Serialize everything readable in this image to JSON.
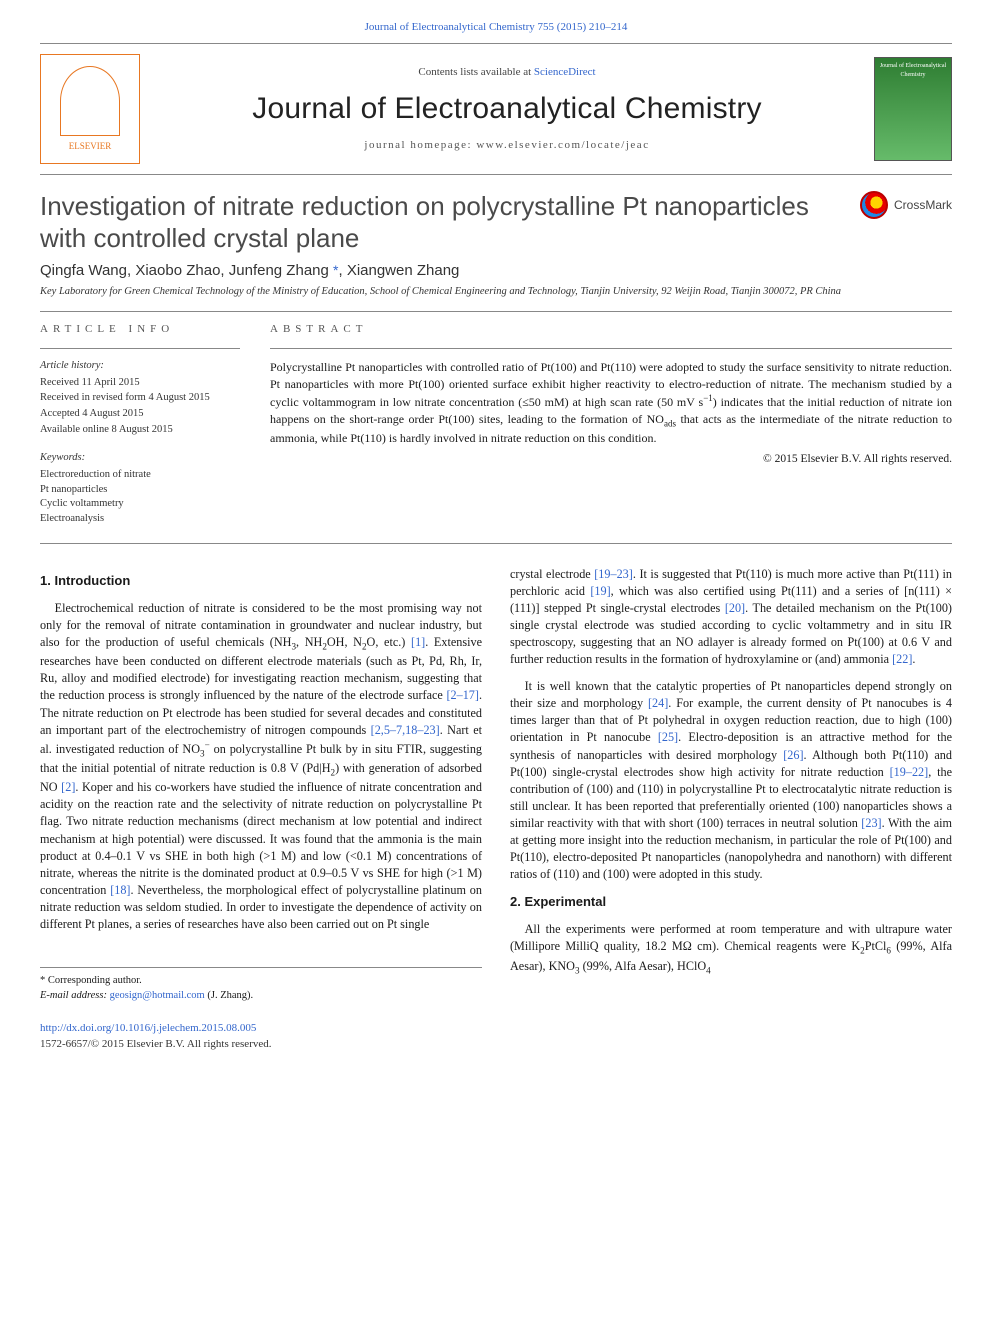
{
  "topbar": "Journal of Electroanalytical Chemistry 755 (2015) 210–214",
  "header": {
    "contents_prefix": "Contents lists available at ",
    "contents_link": "ScienceDirect",
    "journal_name": "Journal of Electroanalytical Chemistry",
    "homepage_prefix": "journal homepage: ",
    "homepage_url": "www.elsevier.com/locate/jeac",
    "elsevier_label": "ELSEVIER",
    "cover_text": "Journal of Electroanalytical Chemistry"
  },
  "title": "Investigation of nitrate reduction on polycrystalline Pt nanoparticles with controlled crystal plane",
  "crossmark_label": "CrossMark",
  "authors": [
    "Qingfa Wang",
    "Xiaobo Zhao",
    "Junfeng Zhang",
    "Xiangwen Zhang"
  ],
  "author_line": "Qingfa Wang, Xiaobo Zhao, Junfeng Zhang *, Xiangwen Zhang",
  "affiliation": "Key Laboratory for Green Chemical Technology of the Ministry of Education, School of Chemical Engineering and Technology, Tianjin University, 92 Weijin Road, Tianjin 300072, PR China",
  "article_info": {
    "label": "article info",
    "history_label": "Article history:",
    "history": [
      "Received 11 April 2015",
      "Received in revised form 4 August 2015",
      "Accepted 4 August 2015",
      "Available online 8 August 2015"
    ],
    "keywords_label": "Keywords:",
    "keywords": [
      "Electroreduction of nitrate",
      "Pt nanoparticles",
      "Cyclic voltammetry",
      "Electroanalysis"
    ]
  },
  "abstract": {
    "label": "abstract",
    "text": "Polycrystalline Pt nanoparticles with controlled ratio of Pt(100) and Pt(110) were adopted to study the surface sensitivity to nitrate reduction. Pt nanoparticles with more Pt(100) oriented surface exhibit higher reactivity to electro-reduction of nitrate. The mechanism studied by a cyclic voltammogram in low nitrate concentration (≤50 mM) at high scan rate (50 mV s⁻¹) indicates that the initial reduction of nitrate ion happens on the short-range order Pt(100) sites, leading to the formation of NOads that acts as the intermediate of the nitrate reduction to ammonia, while Pt(110) is hardly involved in nitrate reduction on this condition.",
    "copyright": "© 2015 Elsevier B.V. All rights reserved."
  },
  "body": {
    "intro_heading": "1. Introduction",
    "intro_p1": "Electrochemical reduction of nitrate is considered to be the most promising way not only for the removal of nitrate contamination in groundwater and nuclear industry, but also for the production of useful chemicals (NH₃, NH₂OH, N₂O, etc.) [1]. Extensive researches have been conducted on different electrode materials (such as Pt, Pd, Rh, Ir, Ru, alloy and modified electrode) for investigating reaction mechanism, suggesting that the reduction process is strongly influenced by the nature of the electrode surface [2–17]. The nitrate reduction on Pt electrode has been studied for several decades and constituted an important part of the electrochemistry of nitrogen compounds [2,5–7,18–23]. Nart et al. investigated reduction of NO₃⁻ on polycrystalline Pt bulk by in situ FTIR, suggesting that the initial potential of nitrate reduction is 0.8 V (Pd|H₂) with generation of adsorbed NO [2]. Koper and his co-workers have studied the influence of nitrate concentration and acidity on the reaction rate and the selectivity of nitrate reduction on polycrystalline Pt flag. Two nitrate reduction mechanisms (direct mechanism at low potential and indirect mechanism at high potential) were discussed. It was found that the ammonia is the main product at 0.4–0.1 V vs SHE in both high (>1 M) and low (<0.1 M) concentrations of nitrate, whereas the nitrite is the dominated product at 0.9–0.5 V vs SHE for high (>1 M) concentration [18]. Nevertheless, the morphological effect of polycrystalline platinum on nitrate reduction was seldom studied. In order to investigate the dependence of activity on different Pt planes, a series of researches have also been carried out on Pt single",
    "intro_p2": "crystal electrode [19–23]. It is suggested that Pt(110) is much more active than Pt(111) in perchloric acid [19], which was also certified using Pt(111) and a series of [n(111) × (111)] stepped Pt single-crystal electrodes [20]. The detailed mechanism on the Pt(100) single crystal electrode was studied according to cyclic voltammetry and in situ IR spectroscopy, suggesting that an NO adlayer is already formed on Pt(100) at 0.6 V and further reduction results in the formation of hydroxylamine or (and) ammonia [22].",
    "intro_p3": "It is well known that the catalytic properties of Pt nanoparticles depend strongly on their size and morphology [24]. For example, the current density of Pt nanocubes is 4 times larger than that of Pt polyhedral in oxygen reduction reaction, due to high (100) orientation in Pt nanocube [25]. Electro-deposition is an attractive method for the synthesis of nanoparticles with desired morphology [26]. Although both Pt(110) and Pt(100) single-crystal electrodes show high activity for nitrate reduction [19–22], the contribution of (100) and (110) in polycrystalline Pt to electrocatalytic nitrate reduction is still unclear. It has been reported that preferentially oriented (100) nanoparticles shows a similar reactivity with that with short (100) terraces in neutral solution [23]. With the aim at getting more insight into the reduction mechanism, in particular the role of Pt(100) and Pt(110), electro-deposited Pt nanoparticles (nanopolyhedra and nanothorn) with different ratios of (110) and (100) were adopted in this study.",
    "exp_heading": "2. Experimental",
    "exp_p1": "All the experiments were performed at room temperature and with ultrapure water (Millipore MilliQ quality, 18.2 MΩ cm). Chemical reagents were K₂PtCl₆ (99%, Alfa Aesar), KNO₃ (99%, Alfa Aesar), HClO₄"
  },
  "footnote": {
    "corresponding": "* Corresponding author.",
    "email_label": "E-mail address:",
    "email": "geosign@hotmail.com",
    "email_paren": "(J. Zhang)."
  },
  "bottom": {
    "doi": "http://dx.doi.org/10.1016/j.jelechem.2015.08.005",
    "issn_line": "1572-6657/© 2015 Elsevier B.V. All rights reserved."
  },
  "colors": {
    "link": "#3366cc",
    "elsevier": "#e87722",
    "text": "#1a1a1a",
    "rule": "#888888"
  }
}
